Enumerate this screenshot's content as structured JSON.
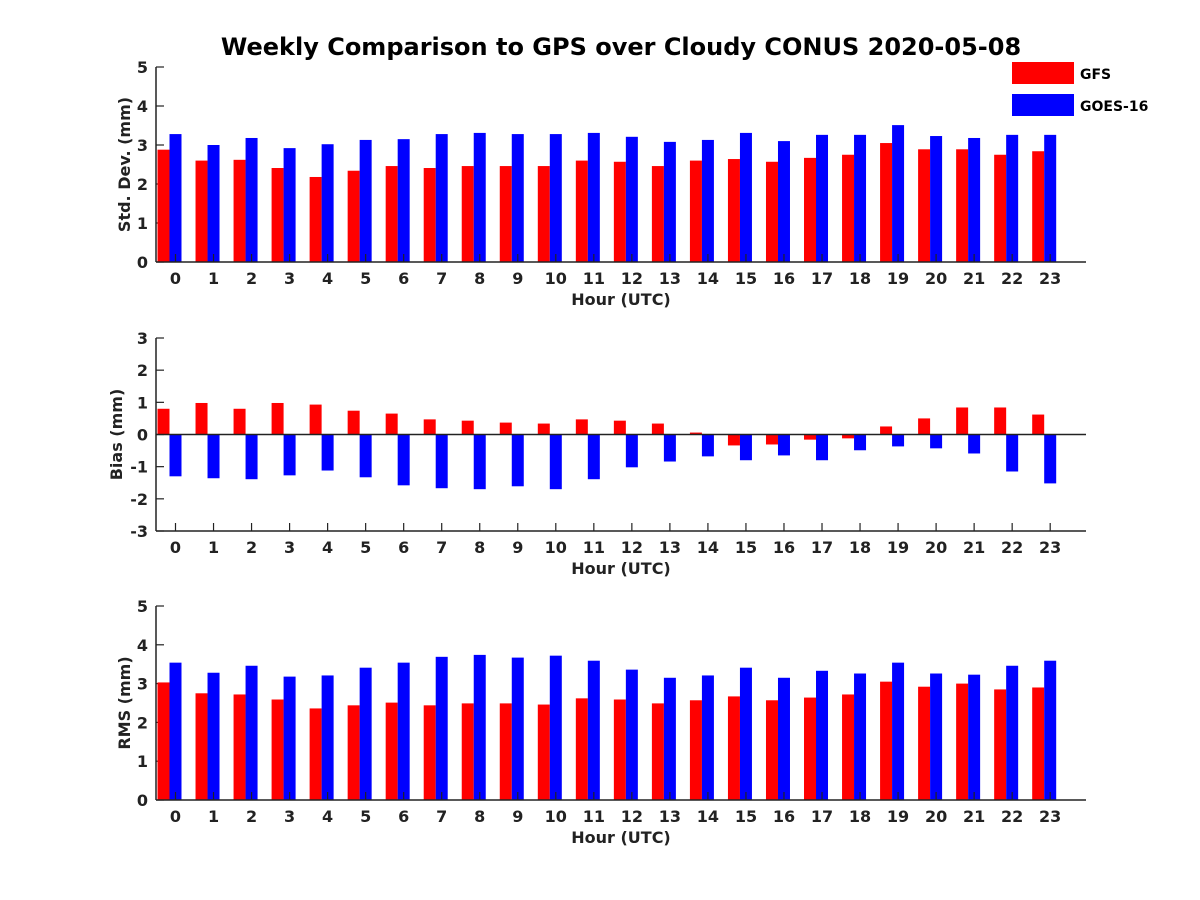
{
  "title": "Weekly Comparison to GPS over Cloudy CONUS 2020-05-08",
  "legend": {
    "placement": "top-right",
    "entries": [
      {
        "label": "GFS",
        "color": "#ff0000"
      },
      {
        "label": "GOES-16",
        "color": "#0000ff"
      }
    ]
  },
  "chart_data": [
    {
      "type": "bar",
      "title": "",
      "xlabel": "Hour (UTC)",
      "ylabel": "Std. Dev. (mm)",
      "ylim": [
        0,
        5
      ],
      "yticks": [
        "0",
        "1",
        "2",
        "3",
        "4",
        "5"
      ],
      "categories": [
        "0",
        "1",
        "2",
        "3",
        "4",
        "5",
        "6",
        "7",
        "8",
        "9",
        "10",
        "11",
        "12",
        "13",
        "14",
        "15",
        "16",
        "17",
        "18",
        "19",
        "20",
        "21",
        "22",
        "23"
      ],
      "series": [
        {
          "name": "GFS",
          "color": "#ff0000",
          "values": [
            2.88,
            2.6,
            2.62,
            2.41,
            2.18,
            2.34,
            2.46,
            2.41,
            2.46,
            2.46,
            2.46,
            2.6,
            2.57,
            2.46,
            2.6,
            2.64,
            2.57,
            2.67,
            2.75,
            3.05,
            2.89,
            2.89,
            2.75,
            2.84
          ]
        },
        {
          "name": "GOES-16",
          "color": "#0000ff",
          "values": [
            3.28,
            3.0,
            3.18,
            2.92,
            3.02,
            3.13,
            3.15,
            3.28,
            3.31,
            3.28,
            3.28,
            3.31,
            3.21,
            3.08,
            3.13,
            3.31,
            3.1,
            3.26,
            3.26,
            3.51,
            3.23,
            3.18,
            3.26,
            3.26
          ]
        }
      ]
    },
    {
      "type": "bar",
      "title": "",
      "xlabel": "Hour (UTC)",
      "ylabel": "Bias (mm)",
      "ylim": [
        -3,
        3
      ],
      "yticks": [
        "-3",
        "-2",
        "-1",
        "0",
        "1",
        "2",
        "3"
      ],
      "categories": [
        "0",
        "1",
        "2",
        "3",
        "4",
        "5",
        "6",
        "7",
        "8",
        "9",
        "10",
        "11",
        "12",
        "13",
        "14",
        "15",
        "16",
        "17",
        "18",
        "19",
        "20",
        "21",
        "22",
        "23"
      ],
      "series": [
        {
          "name": "GFS",
          "color": "#ff0000",
          "values": [
            0.8,
            0.98,
            0.8,
            0.98,
            0.93,
            0.74,
            0.65,
            0.47,
            0.43,
            0.37,
            0.34,
            0.47,
            0.43,
            0.34,
            0.06,
            -0.34,
            -0.31,
            -0.16,
            -0.12,
            0.25,
            0.5,
            0.84,
            0.84,
            0.62
          ]
        },
        {
          "name": "GOES-16",
          "color": "#0000ff",
          "values": [
            -1.3,
            -1.36,
            -1.39,
            -1.27,
            -1.12,
            -1.33,
            -1.58,
            -1.67,
            -1.7,
            -1.61,
            -1.7,
            -1.39,
            -1.02,
            -0.84,
            -0.68,
            -0.8,
            -0.65,
            -0.8,
            -0.49,
            -0.37,
            -0.43,
            -0.59,
            -1.15,
            -1.52
          ]
        }
      ]
    },
    {
      "type": "bar",
      "title": "",
      "xlabel": "Hour (UTC)",
      "ylabel": "RMS (mm)",
      "ylim": [
        0,
        5
      ],
      "yticks": [
        "0",
        "1",
        "2",
        "3",
        "4",
        "5"
      ],
      "categories": [
        "0",
        "1",
        "2",
        "3",
        "4",
        "5",
        "6",
        "7",
        "8",
        "9",
        "10",
        "11",
        "12",
        "13",
        "14",
        "15",
        "16",
        "17",
        "18",
        "19",
        "20",
        "21",
        "22",
        "23"
      ],
      "series": [
        {
          "name": "GFS",
          "color": "#ff0000",
          "values": [
            3.03,
            2.75,
            2.72,
            2.59,
            2.36,
            2.44,
            2.51,
            2.44,
            2.49,
            2.49,
            2.46,
            2.62,
            2.59,
            2.49,
            2.57,
            2.67,
            2.57,
            2.64,
            2.72,
            3.05,
            2.92,
            3.0,
            2.85,
            2.9
          ]
        },
        {
          "name": "GOES-16",
          "color": "#0000ff",
          "values": [
            3.54,
            3.28,
            3.46,
            3.18,
            3.21,
            3.41,
            3.54,
            3.69,
            3.74,
            3.67,
            3.72,
            3.59,
            3.36,
            3.15,
            3.21,
            3.41,
            3.15,
            3.33,
            3.26,
            3.54,
            3.26,
            3.23,
            3.46,
            3.59
          ]
        }
      ]
    }
  ]
}
